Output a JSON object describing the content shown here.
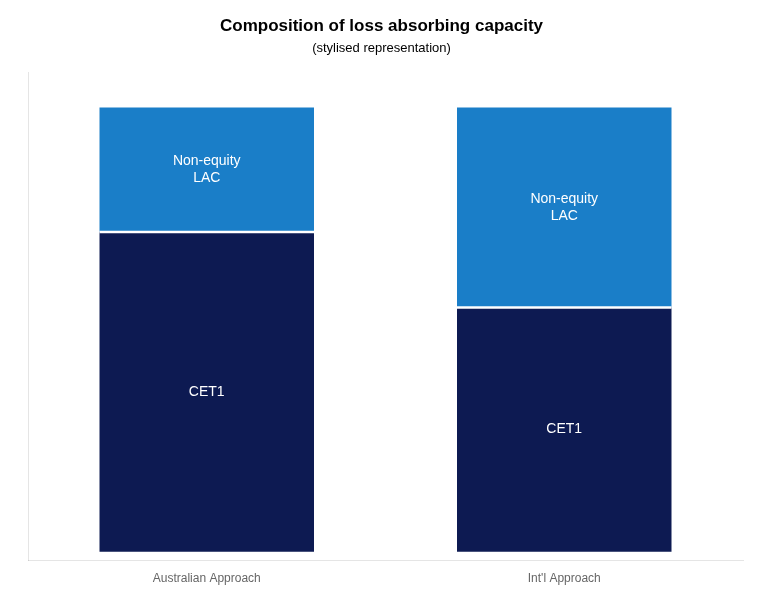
{
  "chart_data": {
    "type": "bar",
    "title": "Composition of loss absorbing capacity",
    "subtitle": "(stylised representation)",
    "categories": [
      "Australian Approach",
      "Int'l Approach"
    ],
    "series": [
      {
        "name": "CET1",
        "color": "#0d1a52",
        "values": [
          0.72,
          0.55
        ]
      },
      {
        "name": "Non-equity\nLAC",
        "color": "#1a7ec8",
        "values": [
          0.28,
          0.45
        ]
      }
    ],
    "stacked": true,
    "ylim": [
      -0.02,
      1.08
    ],
    "tick_labels": "x",
    "grid": false
  }
}
